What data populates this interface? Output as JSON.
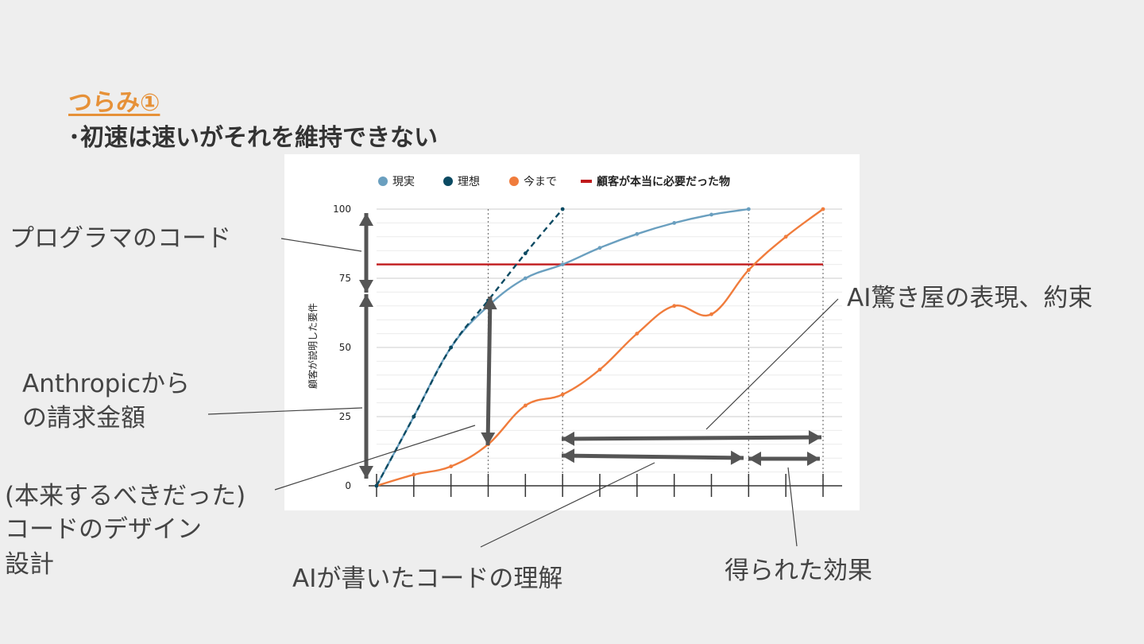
{
  "slide": {
    "title": "つらみ①",
    "subtitle": "･初速は速いがそれを維持できない"
  },
  "annotations": {
    "programmer_code": "プログラマのコード",
    "anthropic_bill_1": "Anthropicから",
    "anthropic_bill_2": "の請求金額",
    "design_1": "(本来するべきだった)",
    "design_2": "コードのデザイン",
    "design_3": "設計",
    "ai_promise": "AI驚き屋の表現、約束",
    "ai_understand": "AIが書いたコードの理解",
    "effect": "得られた効果"
  },
  "colors": {
    "reality": "#6a9fbf",
    "ideal": "#0b4a62",
    "until_now": "#f07c3c",
    "required": "#c0191b",
    "arrow": "#555555"
  },
  "chart_data": {
    "type": "line",
    "x": [
      0,
      1,
      2,
      3,
      4,
      5,
      6,
      7,
      8,
      9,
      10,
      11,
      12
    ],
    "ylim": [
      0,
      100
    ],
    "xlim": [
      0,
      12
    ],
    "yticks": [
      0,
      25,
      50,
      75,
      100
    ],
    "ylabel": "顧客が説明した要件",
    "legend_position": "top",
    "series": [
      {
        "name": "現実",
        "x": [
          0,
          1,
          2,
          3,
          4,
          5,
          6,
          7,
          8,
          9,
          10
        ],
        "values": [
          0,
          25,
          50,
          65,
          75,
          80,
          86,
          91,
          95,
          98,
          100
        ]
      },
      {
        "name": "理想",
        "x": [
          0,
          1,
          2,
          3,
          4,
          5
        ],
        "values": [
          0,
          25,
          50,
          67,
          84,
          100
        ]
      },
      {
        "name": "今まで",
        "x": [
          0,
          1,
          2,
          3,
          4,
          5,
          6,
          7,
          8,
          9,
          10,
          11,
          12
        ],
        "values": [
          0,
          4,
          7,
          15,
          29,
          33,
          42,
          55,
          65,
          62,
          78,
          90,
          100
        ]
      },
      {
        "name": "顧客が本当に必要だった物",
        "x": [
          0,
          12
        ],
        "values": [
          80,
          80
        ]
      }
    ],
    "vertical_markers_x": [
      3,
      5,
      10,
      12
    ]
  }
}
